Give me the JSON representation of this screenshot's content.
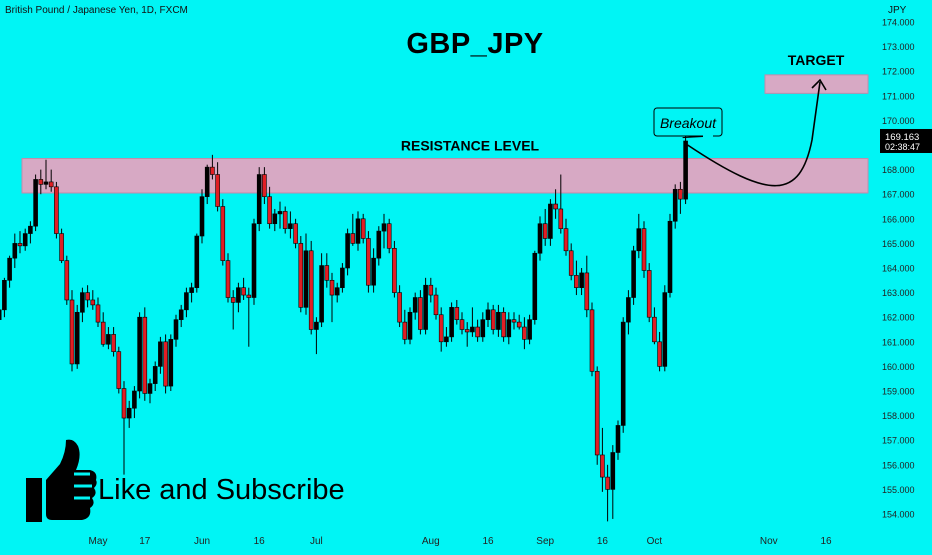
{
  "header": {
    "symbol_desc": "British Pound / Japanese Yen, 1D, FXCM",
    "currency": "JPY"
  },
  "chart_data": {
    "type": "candlestick",
    "title": "GBP_JPY",
    "ylim": [
      153.4,
      174.2
    ],
    "y_ticks": [
      154,
      155,
      156,
      157,
      158,
      159,
      160,
      161,
      162,
      163,
      164,
      165,
      166,
      167,
      168,
      169,
      170,
      171,
      172,
      173,
      174
    ],
    "y_tick_labels": [
      "154.000",
      "155.000",
      "156.000",
      "157.000",
      "158.000",
      "159.000",
      "160.000",
      "161.000",
      "162.000",
      "163.000",
      "164.000",
      "165.000",
      "166.000",
      "167.000",
      "168.000",
      "169.000",
      "170.000",
      "171.000",
      "172.000",
      "173.000",
      "174.000"
    ],
    "x_tick_labels": [
      {
        "label": "May",
        "bar": 20
      },
      {
        "label": "17",
        "bar": 29
      },
      {
        "label": "Jun",
        "bar": 40
      },
      {
        "label": "16",
        "bar": 51
      },
      {
        "label": "Jul",
        "bar": 62
      },
      {
        "label": "Aug",
        "bar": 84
      },
      {
        "label": "16",
        "bar": 95
      },
      {
        "label": "Sep",
        "bar": 106
      },
      {
        "label": "16",
        "bar": 117
      },
      {
        "label": "Oct",
        "bar": 127
      },
      {
        "label": "Nov",
        "bar": 149
      },
      {
        "label": "16",
        "bar": 160
      }
    ],
    "bar_spacing": 5.2,
    "bar_origin": -6,
    "last_price": "169.163",
    "countdown": "02:38:47",
    "colors": {
      "up": "#000000",
      "down": "#e01e24",
      "zone": "#d7a9c4",
      "zone_border": "#c48aaa",
      "price_tag": "#000000"
    },
    "ohlc": [
      [
        162.2,
        162.6,
        161.8,
        161.9
      ],
      [
        161.9,
        162.4,
        161.5,
        162.3
      ],
      [
        162.3,
        163.6,
        162.0,
        163.5
      ],
      [
        163.5,
        164.5,
        163.2,
        164.4
      ],
      [
        164.4,
        165.4,
        164.0,
        165.0
      ],
      [
        165.0,
        165.5,
        164.6,
        164.9
      ],
      [
        164.9,
        165.6,
        164.7,
        165.4
      ],
      [
        165.4,
        165.9,
        165.0,
        165.7
      ],
      [
        165.7,
        167.8,
        165.5,
        167.6
      ],
      [
        167.6,
        168.0,
        167.0,
        167.4
      ],
      [
        167.4,
        168.4,
        167.2,
        167.5
      ],
      [
        167.5,
        168.0,
        167.1,
        167.3
      ],
      [
        167.3,
        167.5,
        165.2,
        165.4
      ],
      [
        165.4,
        165.6,
        164.2,
        164.3
      ],
      [
        164.3,
        164.5,
        162.5,
        162.7
      ],
      [
        162.7,
        163.1,
        159.8,
        160.1
      ],
      [
        160.1,
        162.5,
        159.9,
        162.2
      ],
      [
        162.2,
        163.2,
        161.8,
        163.0
      ],
      [
        163.0,
        163.3,
        162.4,
        162.7
      ],
      [
        162.7,
        163.1,
        162.3,
        162.5
      ],
      [
        162.5,
        162.8,
        161.6,
        161.8
      ],
      [
        161.8,
        162.2,
        160.8,
        160.9
      ],
      [
        160.9,
        161.6,
        160.7,
        161.3
      ],
      [
        161.3,
        161.6,
        160.4,
        160.6
      ],
      [
        160.6,
        160.8,
        158.9,
        159.1
      ],
      [
        159.1,
        159.4,
        155.6,
        157.9
      ],
      [
        157.9,
        158.6,
        157.5,
        158.3
      ],
      [
        158.3,
        159.2,
        157.9,
        159.0
      ],
      [
        159.0,
        162.2,
        158.7,
        162.0
      ],
      [
        162.0,
        162.4,
        158.6,
        158.9
      ],
      [
        158.9,
        159.5,
        158.5,
        159.3
      ],
      [
        159.3,
        160.2,
        159.0,
        160.0
      ],
      [
        160.0,
        161.2,
        159.7,
        161.0
      ],
      [
        161.0,
        161.3,
        158.9,
        159.2
      ],
      [
        159.2,
        161.3,
        159.0,
        161.1
      ],
      [
        161.1,
        162.1,
        160.8,
        161.9
      ],
      [
        161.9,
        162.5,
        161.6,
        162.3
      ],
      [
        162.3,
        163.2,
        162.0,
        163.0
      ],
      [
        163.0,
        163.4,
        162.6,
        163.2
      ],
      [
        163.2,
        165.4,
        163.0,
        165.3
      ],
      [
        165.3,
        167.2,
        165.0,
        166.9
      ],
      [
        166.9,
        168.2,
        166.6,
        168.1
      ],
      [
        168.1,
        168.6,
        167.6,
        167.8
      ],
      [
        167.8,
        168.3,
        166.3,
        166.5
      ],
      [
        166.5,
        166.8,
        164.1,
        164.3
      ],
      [
        164.3,
        164.6,
        162.6,
        162.8
      ],
      [
        162.8,
        163.1,
        161.5,
        162.6
      ],
      [
        162.6,
        163.4,
        162.2,
        163.2
      ],
      [
        163.2,
        163.6,
        162.7,
        162.9
      ],
      [
        162.9,
        163.2,
        160.8,
        162.8
      ],
      [
        162.8,
        166.0,
        162.5,
        165.8
      ],
      [
        165.8,
        168.1,
        165.5,
        167.8
      ],
      [
        167.8,
        168.1,
        166.6,
        166.9
      ],
      [
        166.9,
        167.3,
        165.6,
        165.8
      ],
      [
        165.8,
        166.4,
        165.5,
        166.2
      ],
      [
        166.2,
        166.7,
        165.6,
        166.3
      ],
      [
        166.3,
        166.5,
        165.4,
        165.6
      ],
      [
        165.6,
        166.3,
        165.2,
        165.8
      ],
      [
        165.8,
        166.0,
        164.8,
        165.0
      ],
      [
        165.0,
        165.3,
        162.2,
        162.4
      ],
      [
        162.4,
        165.4,
        162.1,
        164.7
      ],
      [
        164.7,
        165.1,
        161.3,
        161.5
      ],
      [
        161.5,
        162.0,
        160.5,
        161.8
      ],
      [
        161.8,
        164.6,
        161.6,
        164.1
      ],
      [
        164.1,
        164.6,
        163.2,
        163.5
      ],
      [
        163.5,
        163.8,
        161.8,
        162.9
      ],
      [
        162.9,
        163.4,
        162.6,
        163.2
      ],
      [
        163.2,
        164.2,
        163.0,
        164.0
      ],
      [
        164.0,
        165.6,
        163.7,
        165.4
      ],
      [
        165.4,
        166.2,
        164.9,
        165.0
      ],
      [
        165.0,
        166.3,
        164.7,
        166.0
      ],
      [
        166.0,
        166.2,
        165.0,
        165.2
      ],
      [
        165.2,
        165.5,
        163.0,
        163.3
      ],
      [
        163.3,
        164.8,
        163.0,
        164.4
      ],
      [
        164.4,
        165.7,
        164.1,
        165.5
      ],
      [
        165.5,
        166.2,
        164.8,
        165.8
      ],
      [
        165.8,
        166.0,
        164.6,
        164.8
      ],
      [
        164.8,
        165.1,
        162.8,
        163.0
      ],
      [
        163.0,
        163.3,
        161.6,
        161.8
      ],
      [
        161.8,
        162.3,
        160.9,
        161.1
      ],
      [
        161.1,
        162.4,
        160.9,
        162.2
      ],
      [
        162.2,
        163.0,
        161.9,
        162.8
      ],
      [
        162.8,
        163.1,
        161.3,
        161.5
      ],
      [
        161.5,
        163.6,
        161.3,
        163.3
      ],
      [
        163.3,
        163.6,
        162.6,
        162.9
      ],
      [
        162.9,
        163.2,
        161.9,
        162.1
      ],
      [
        162.1,
        162.4,
        160.6,
        161.0
      ],
      [
        161.0,
        161.6,
        160.8,
        161.2
      ],
      [
        161.2,
        162.6,
        161.0,
        162.4
      ],
      [
        162.4,
        162.7,
        161.7,
        161.9
      ],
      [
        161.9,
        162.2,
        161.3,
        161.5
      ],
      [
        161.5,
        161.8,
        160.8,
        161.4
      ],
      [
        161.4,
        162.4,
        161.2,
        161.6
      ],
      [
        161.6,
        161.9,
        161.0,
        161.2
      ],
      [
        161.2,
        162.2,
        161.0,
        161.9
      ],
      [
        161.9,
        162.6,
        161.6,
        162.3
      ],
      [
        162.3,
        162.5,
        161.3,
        161.5
      ],
      [
        161.5,
        162.5,
        161.2,
        162.2
      ],
      [
        162.2,
        162.4,
        161.0,
        161.2
      ],
      [
        161.2,
        162.2,
        160.9,
        161.9
      ],
      [
        161.9,
        162.2,
        161.5,
        161.8
      ],
      [
        161.8,
        162.1,
        161.5,
        161.6
      ],
      [
        161.6,
        162.0,
        160.7,
        161.1
      ],
      [
        161.1,
        162.1,
        160.9,
        161.9
      ],
      [
        161.9,
        164.7,
        161.7,
        164.6
      ],
      [
        164.6,
        166.1,
        164.3,
        165.8
      ],
      [
        165.8,
        166.4,
        164.9,
        165.2
      ],
      [
        165.2,
        166.8,
        164.9,
        166.6
      ],
      [
        166.6,
        167.2,
        166.0,
        166.4
      ],
      [
        166.4,
        167.8,
        165.4,
        165.6
      ],
      [
        165.6,
        166.0,
        164.5,
        164.7
      ],
      [
        164.7,
        165.0,
        163.5,
        163.7
      ],
      [
        163.7,
        164.3,
        162.9,
        163.2
      ],
      [
        163.2,
        164.0,
        162.9,
        163.8
      ],
      [
        163.8,
        164.5,
        162.0,
        162.3
      ],
      [
        162.3,
        162.6,
        159.6,
        159.8
      ],
      [
        159.8,
        160.0,
        156.0,
        156.4
      ],
      [
        156.4,
        157.5,
        154.9,
        155.5
      ],
      [
        155.5,
        156.0,
        153.7,
        155.0
      ],
      [
        155.0,
        156.8,
        153.8,
        156.5
      ],
      [
        156.5,
        157.8,
        156.2,
        157.6
      ],
      [
        157.6,
        162.0,
        157.3,
        161.8
      ],
      [
        161.8,
        163.1,
        161.3,
        162.8
      ],
      [
        162.8,
        164.9,
        162.5,
        164.7
      ],
      [
        164.7,
        166.2,
        164.4,
        165.6
      ],
      [
        165.6,
        165.9,
        163.6,
        163.9
      ],
      [
        163.9,
        164.2,
        161.8,
        162.0
      ],
      [
        162.0,
        162.4,
        160.9,
        161.0
      ],
      [
        161.0,
        161.4,
        159.8,
        160.0
      ],
      [
        160.0,
        163.3,
        159.8,
        163.0
      ],
      [
        163.0,
        166.2,
        162.8,
        165.9
      ],
      [
        165.9,
        167.4,
        165.6,
        167.2
      ],
      [
        167.2,
        167.5,
        166.2,
        166.8
      ],
      [
        166.8,
        170.0,
        166.6,
        169.163
      ]
    ],
    "resistance_zone": {
      "label": "RESISTANCE LEVEL",
      "from": 167.05,
      "to": 168.45
    },
    "target_zone": {
      "label": "TARGET",
      "from": 171.1,
      "to": 171.85
    },
    "annotations": {
      "breakout": "Breakout",
      "cta": "Like and Subscribe"
    }
  }
}
